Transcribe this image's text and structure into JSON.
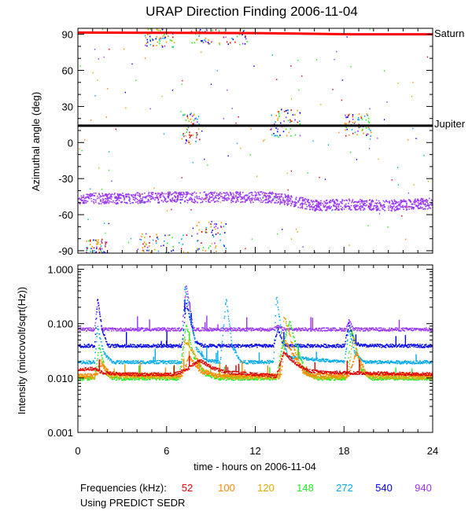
{
  "chart_data": {
    "type": "scatter",
    "title": "URAP Direction Finding  2006-11-04",
    "x": {
      "label": "time - hours on 2006-11-04",
      "range": [
        0,
        24
      ],
      "ticks": [
        0,
        6,
        12,
        18,
        24
      ],
      "tick_labels": [
        "0",
        "6",
        "12",
        "18",
        "24"
      ]
    },
    "panels": [
      {
        "name": "azimuth",
        "ylabel": "Azimuthal angle (deg)",
        "ylim": [
          -92,
          95
        ],
        "ticks": [
          90,
          60,
          30,
          0,
          -30,
          -60,
          -90
        ],
        "tick_labels": [
          "90",
          "60",
          "30",
          "0",
          "-30",
          "-60",
          "-90"
        ],
        "reference_lines": [
          {
            "label": "Saturn",
            "color": "#ff0000",
            "points": [
              [
                0,
                91.5
              ],
              [
                12,
                91
              ],
              [
                18.5,
                90
              ],
              [
                24,
                90
              ]
            ]
          },
          {
            "label": "Jupiter",
            "color": "#000000",
            "points": [
              [
                0,
                14
              ],
              [
                24,
                14
              ]
            ]
          }
        ],
        "band_940kHz": [
          [
            0,
            -46
          ],
          [
            3,
            -46
          ],
          [
            6,
            -45
          ],
          [
            9,
            -45
          ],
          [
            12,
            -45
          ],
          [
            13,
            -45
          ],
          [
            14.5,
            -48
          ],
          [
            16,
            -52
          ],
          [
            18,
            -51
          ],
          [
            21,
            -52
          ],
          [
            24,
            -50
          ]
        ],
        "band_spread_deg": 9,
        "clusters": [
          {
            "x": [
              4.5,
              6.5
            ],
            "y": [
              80,
              95
            ]
          },
          {
            "x": [
              7.5,
              11.5
            ],
            "y": [
              82,
              95
            ]
          },
          {
            "x": [
              7.0,
              8.2
            ],
            "y": [
              -2,
              25
            ]
          },
          {
            "x": [
              13.0,
              15.0
            ],
            "y": [
              5,
              28
            ]
          },
          {
            "x": [
              18.0,
              19.8
            ],
            "y": [
              5,
              25
            ]
          },
          {
            "x": [
              4.0,
              7.5
            ],
            "y": [
              -93,
              -75
            ]
          },
          {
            "x": [
              8.0,
              10.0
            ],
            "y": [
              -93,
              -65
            ]
          },
          {
            "x": [
              0.5,
              2.0
            ],
            "y": [
              -93,
              -80
            ]
          }
        ]
      },
      {
        "name": "intensity",
        "ylabel": "Intensity (microvolt/sqrt(Hz))",
        "scale": "log",
        "ylim": [
          0.001,
          1.2
        ],
        "ticks": [
          1.0,
          0.1,
          0.01,
          0.001
        ],
        "tick_labels": [
          "1.000",
          "0.100",
          "0.010",
          "0.001"
        ],
        "series": [
          {
            "freq": "940",
            "color": "#9933ff",
            "points": [
              [
                0,
                0.08
              ],
              [
                1.1,
                0.08
              ],
              [
                1.3,
                0.28
              ],
              [
                1.6,
                0.08
              ],
              [
                7,
                0.08
              ],
              [
                7.3,
                0.5
              ],
              [
                7.8,
                0.08
              ],
              [
                13.2,
                0.08
              ],
              [
                13.5,
                0.09
              ],
              [
                13.9,
                0.08
              ],
              [
                18.1,
                0.08
              ],
              [
                18.3,
                0.12
              ],
              [
                18.6,
                0.08
              ],
              [
                24,
                0.08
              ]
            ]
          },
          {
            "freq": "540",
            "color": "#0000ee",
            "points": [
              [
                0,
                0.04
              ],
              [
                1.1,
                0.04
              ],
              [
                1.3,
                0.3
              ],
              [
                1.6,
                0.08
              ],
              [
                2.0,
                0.04
              ],
              [
                7.0,
                0.04
              ],
              [
                7.3,
                0.25
              ],
              [
                7.9,
                0.05
              ],
              [
                8.4,
                0.04
              ],
              [
                13.2,
                0.04
              ],
              [
                13.5,
                0.08
              ],
              [
                13.9,
                0.04
              ],
              [
                18.0,
                0.04
              ],
              [
                18.3,
                0.1
              ],
              [
                18.7,
                0.045
              ],
              [
                19.2,
                0.04
              ],
              [
                24,
                0.04
              ]
            ]
          },
          {
            "freq": "272",
            "color": "#00aaee",
            "points": [
              [
                0,
                0.02
              ],
              [
                1.1,
                0.02
              ],
              [
                1.3,
                0.09
              ],
              [
                1.7,
                0.03
              ],
              [
                2.3,
                0.02
              ],
              [
                7.0,
                0.02
              ],
              [
                7.2,
                0.55
              ],
              [
                7.6,
                0.12
              ],
              [
                8.0,
                0.035
              ],
              [
                8.6,
                0.022
              ],
              [
                9.6,
                0.02
              ],
              [
                10.0,
                0.3
              ],
              [
                10.4,
                0.04
              ],
              [
                11,
                0.02
              ],
              [
                13.2,
                0.02
              ],
              [
                13.4,
                0.35
              ],
              [
                13.8,
                0.05
              ],
              [
                14.2,
                0.025
              ],
              [
                18.0,
                0.02
              ],
              [
                18.3,
                0.08
              ],
              [
                18.7,
                0.03
              ],
              [
                19.3,
                0.02
              ],
              [
                24,
                0.02
              ]
            ]
          },
          {
            "freq": "148",
            "color": "#22ee22",
            "points": [
              [
                0,
                0.01
              ],
              [
                1.1,
                0.01
              ],
              [
                1.4,
                0.04
              ],
              [
                1.9,
                0.012
              ],
              [
                2.4,
                0.01
              ],
              [
                6.8,
                0.01
              ],
              [
                7.3,
                0.1
              ],
              [
                7.8,
                0.025
              ],
              [
                8.6,
                0.012
              ],
              [
                9.5,
                0.01
              ],
              [
                13.4,
                0.01
              ],
              [
                13.7,
                0.03
              ],
              [
                14.3,
                0.11
              ],
              [
                14.8,
                0.035
              ],
              [
                15.4,
                0.013
              ],
              [
                16.2,
                0.01
              ],
              [
                18.1,
                0.01
              ],
              [
                18.5,
                0.08
              ],
              [
                19.1,
                0.015
              ],
              [
                19.8,
                0.01
              ],
              [
                24,
                0.01
              ]
            ]
          },
          {
            "freq": "120",
            "color": "#ddaa00",
            "points": [
              [
                0,
                0.0105
              ],
              [
                1.1,
                0.0105
              ],
              [
                1.5,
                0.022
              ],
              [
                2.0,
                0.011
              ],
              [
                6.9,
                0.0105
              ],
              [
                7.2,
                0.05
              ],
              [
                7.8,
                0.03
              ],
              [
                8.4,
                0.015
              ],
              [
                9.2,
                0.011
              ],
              [
                10,
                0.0105
              ],
              [
                13.6,
                0.0105
              ],
              [
                13.9,
                0.15
              ],
              [
                14.5,
                0.04
              ],
              [
                15.2,
                0.013
              ],
              [
                16,
                0.0105
              ],
              [
                18.2,
                0.0105
              ],
              [
                18.6,
                0.06
              ],
              [
                19.2,
                0.013
              ],
              [
                19.8,
                0.0105
              ],
              [
                24,
                0.0105
              ]
            ]
          },
          {
            "freq": "100",
            "color": "#ff8800",
            "points": [
              [
                0,
                0.0115
              ],
              [
                1.2,
                0.0115
              ],
              [
                1.6,
                0.018
              ],
              [
                2.2,
                0.012
              ],
              [
                7.0,
                0.0115
              ],
              [
                7.5,
                0.025
              ],
              [
                8.3,
                0.013
              ],
              [
                9.5,
                0.0115
              ],
              [
                13.7,
                0.0115
              ],
              [
                14.0,
                0.05
              ],
              [
                14.6,
                0.025
              ],
              [
                15.4,
                0.012
              ],
              [
                18.3,
                0.0115
              ],
              [
                18.8,
                0.03
              ],
              [
                19.5,
                0.012
              ],
              [
                24,
                0.0115
              ]
            ]
          },
          {
            "freq": "52",
            "color": "#dd0000",
            "points": [
              [
                0,
                0.015
              ],
              [
                1.2,
                0.015
              ],
              [
                1.6,
                0.013
              ],
              [
                3,
                0.012
              ],
              [
                6.5,
                0.012
              ],
              [
                7.2,
                0.014
              ],
              [
                8.2,
                0.022
              ],
              [
                9,
                0.016
              ],
              [
                10,
                0.013
              ],
              [
                12.0,
                0.012
              ],
              [
                13.4,
                0.011
              ],
              [
                13.9,
                0.03
              ],
              [
                14.6,
                0.02
              ],
              [
                15.5,
                0.014
              ],
              [
                16.5,
                0.013
              ],
              [
                24,
                0.012
              ]
            ]
          }
        ]
      }
    ],
    "legend": {
      "label": "Frequencies (kHz):",
      "items": [
        {
          "freq": "52",
          "color": "#dd0000"
        },
        {
          "freq": "100",
          "color": "#ff8800"
        },
        {
          "freq": "120",
          "color": "#ddaa00"
        },
        {
          "freq": "148",
          "color": "#22ee22"
        },
        {
          "freq": "272",
          "color": "#00aaee"
        },
        {
          "freq": "540",
          "color": "#0000ee"
        },
        {
          "freq": "940",
          "color": "#9933ff"
        }
      ]
    },
    "note": "Using PREDICT SEDR"
  }
}
